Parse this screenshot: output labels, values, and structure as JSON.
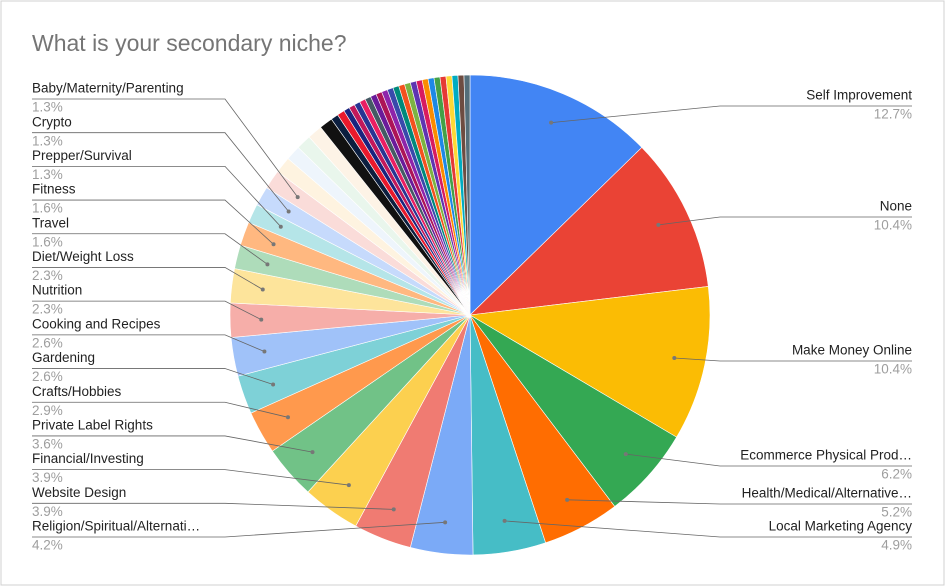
{
  "chart_data": {
    "type": "pie",
    "title": "What is your secondary niche?",
    "categories": [
      "Self Improvement",
      "None",
      "Make Money Online",
      "Ecommerce Physical Prod…",
      "Health/Medical/Alternative…",
      "Local Marketing Agency",
      "Religion/Spiritual/Alternati…",
      "Website Design",
      "Financial/Investing",
      "Private Label Rights",
      "Crafts/Hobbies",
      "Gardening",
      "Cooking and Recipes",
      "Nutrition",
      "Diet/Weight Loss",
      "Travel",
      "Fitness",
      "Prepper/Survival",
      "Crypto",
      "Baby/Maternity/Parenting",
      null,
      null,
      null,
      null,
      null,
      null,
      null,
      null,
      null,
      null,
      null,
      null,
      null,
      null,
      null,
      null,
      null,
      null,
      null,
      null,
      null,
      null,
      null,
      null,
      null,
      null,
      null,
      null,
      null
    ],
    "values": [
      12.7,
      10.4,
      10.4,
      6.2,
      5.2,
      4.9,
      4.2,
      3.9,
      3.9,
      3.6,
      2.9,
      2.6,
      2.6,
      2.3,
      2.3,
      1.6,
      1.6,
      1.3,
      1.3,
      1.3,
      1.1,
      1.0,
      1.0,
      1.0,
      0.9,
      0.5,
      0.5,
      0.4,
      0.4,
      0.4,
      0.4,
      0.4,
      0.4,
      0.4,
      0.4,
      0.4,
      0.4,
      0.4,
      0.4,
      0.4,
      0.4,
      0.4,
      0.4,
      0.4,
      0.4,
      0.4,
      0.4,
      0.4,
      0.4
    ],
    "value_labels": [
      "12.7%",
      "10.4%",
      "10.4%",
      "6.2%",
      "5.2%",
      "4.9%",
      "4.2%",
      "3.9%",
      "3.9%",
      "3.6%",
      "2.9%",
      "2.6%",
      "2.6%",
      "2.3%",
      "2.3%",
      "1.6%",
      "1.6%",
      "1.3%",
      "1.3%",
      "1.3%",
      null,
      null,
      null,
      null,
      null,
      null,
      null,
      null,
      null,
      null,
      null,
      null,
      null,
      null,
      null,
      null,
      null,
      null,
      null,
      null,
      null,
      null,
      null,
      null,
      null,
      null,
      null,
      null,
      null
    ],
    "colors": [
      "#4285f4",
      "#ea4335",
      "#fbbc04",
      "#34a853",
      "#ff6d01",
      "#46bdc6",
      "#7baaf7",
      "#f07b72",
      "#fcd04f",
      "#71c287",
      "#ff994d",
      "#7ed1d7",
      "#a0c2f9",
      "#f6aea9",
      "#fde49b",
      "#aedcba",
      "#ffb880",
      "#b5e5e8",
      "#c6dafc",
      "#fadcd9",
      "#fef3e0",
      "#eef5fc",
      "#e9f6ec",
      "#fdf3e6",
      "#111111",
      "#0b1e3f",
      "#e8192c",
      "#1a237e",
      "#c2185b",
      "#283593",
      "#e91e63",
      "#455a64",
      "#6a1b9a",
      "#ad1457",
      "#8e24aa",
      "#3949ab",
      "#00897b",
      "#f4511e",
      "#7cb342",
      "#5e35b1",
      "#d81b60",
      "#fb8c00",
      "#1e88e5",
      "#43a047",
      "#e53935",
      "#fdd835",
      "#00acc1",
      "#6d4c41",
      "#546e7a"
    ]
  }
}
